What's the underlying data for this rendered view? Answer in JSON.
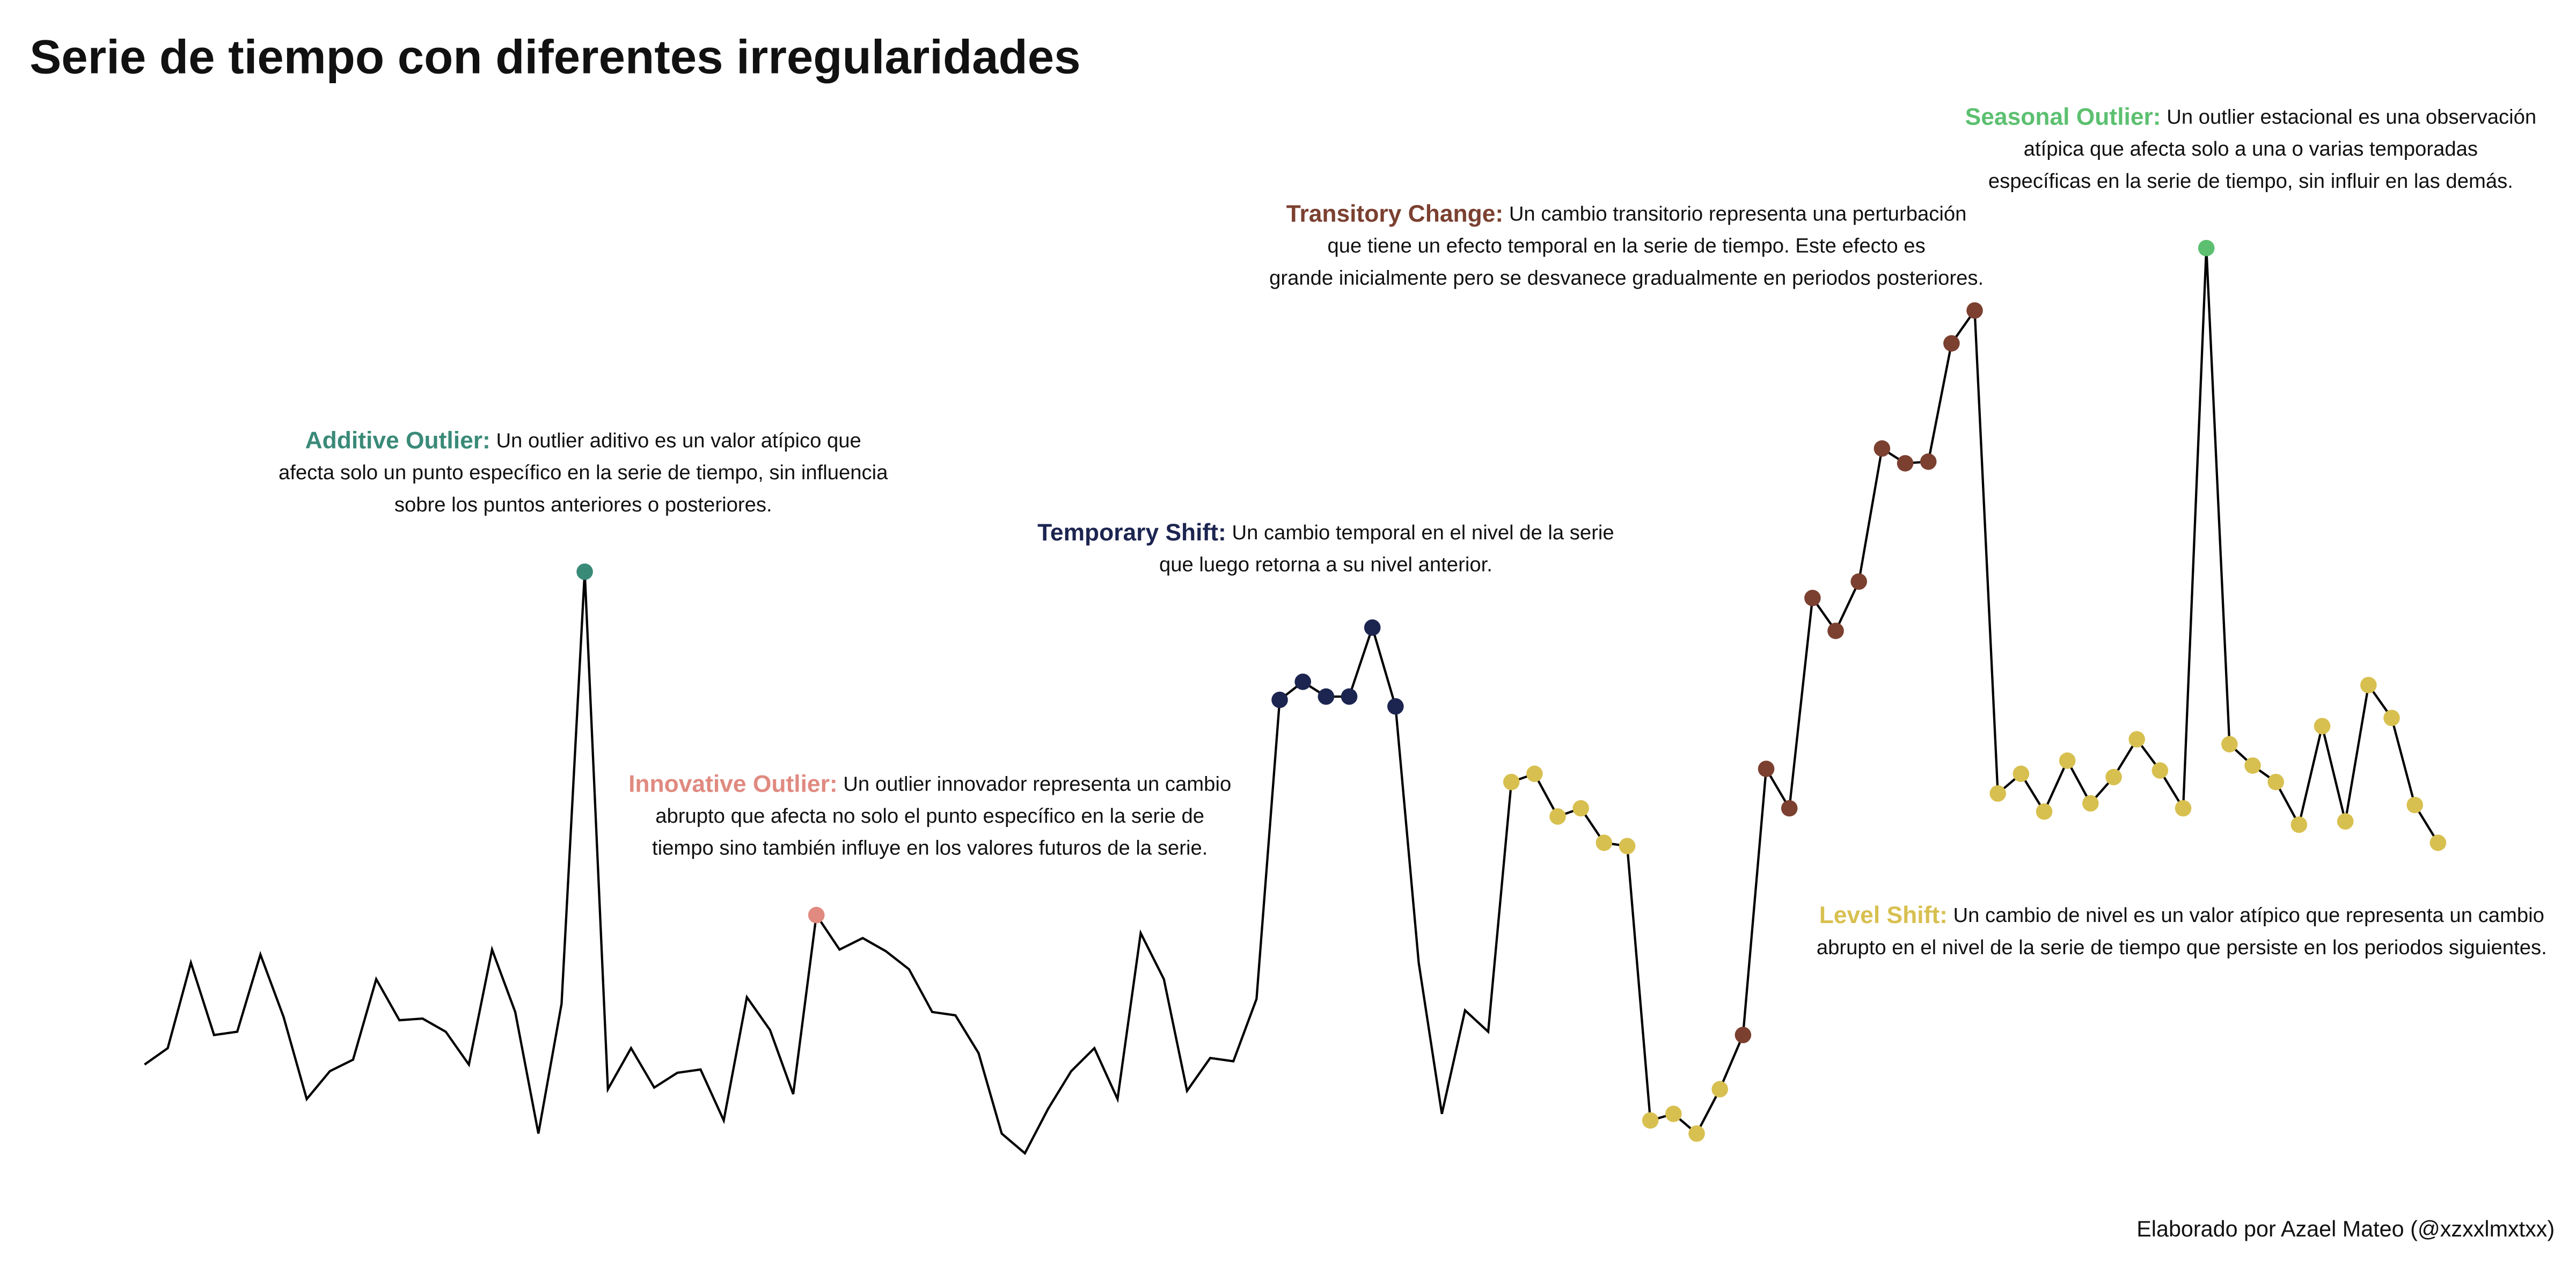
{
  "chart_data": {
    "type": "line",
    "title": "Serie de tiempo con diferentes irregularidades",
    "credit": "Elaborado por Azael Mateo (@xzxxlmxtxx)",
    "line_color": "#000000",
    "x": [
      1,
      2,
      3,
      4,
      5,
      6,
      7,
      8,
      9,
      10,
      11,
      12,
      13,
      14,
      15,
      16,
      17,
      18,
      19,
      20,
      21,
      22,
      23,
      24,
      25,
      26,
      27,
      28,
      29,
      30,
      31,
      32,
      33,
      34,
      35,
      36,
      37,
      38,
      39,
      40,
      41,
      42,
      43,
      44,
      45,
      46,
      47,
      48,
      49,
      50,
      51,
      52,
      53,
      54,
      55,
      56,
      57,
      58,
      59,
      60,
      61,
      62,
      63,
      64,
      65,
      66,
      67,
      68,
      69,
      70,
      71,
      72,
      73,
      74,
      75,
      76,
      77,
      78,
      79,
      80,
      81,
      82,
      83,
      84,
      85,
      86,
      87,
      88,
      89,
      90,
      91,
      92,
      93,
      94,
      95,
      96,
      97,
      98,
      99,
      100
    ],
    "values": [
      7.2,
      8.2,
      13.4,
      9.0,
      9.2,
      13.9,
      10.1,
      5.1,
      6.8,
      7.5,
      12.4,
      9.9,
      10.0,
      9.2,
      7.2,
      14.2,
      10.4,
      3.0,
      10.9,
      37.2,
      5.7,
      8.2,
      5.8,
      6.7,
      6.9,
      3.8,
      11.3,
      9.3,
      5.4,
      16.3,
      14.2,
      14.9,
      14.1,
      13.0,
      10.4,
      10.2,
      7.9,
      3.0,
      1.8,
      4.5,
      6.8,
      8.2,
      5.1,
      15.2,
      12.4,
      5.6,
      7.6,
      7.4,
      11.2,
      29.4,
      30.5,
      29.6,
      29.6,
      33.8,
      29.0,
      13.4,
      4.2,
      10.5,
      9.2,
      24.4,
      24.9,
      22.3,
      22.8,
      20.7,
      20.5,
      3.8,
      4.2,
      3.0,
      5.7,
      9.0,
      25.2,
      22.8,
      35.6,
      33.6,
      36.6,
      44.7,
      43.8,
      43.9,
      51.1,
      53.1,
      23.7,
      24.9,
      22.6,
      25.7,
      23.1,
      24.7,
      27.0,
      25.1,
      22.8,
      56.9,
      26.7,
      25.4,
      24.4,
      21.8,
      27.8,
      22.0,
      30.3,
      28.3,
      23.0,
      20.7
    ],
    "annotations": [
      {
        "title": "Additive Outlier:",
        "color": "#3a8a78",
        "points": [
          20
        ],
        "lines": [
          "Un outlier aditivo es un valor atípico que",
          "afecta solo un punto específico en la serie de tiempo, sin influencia",
          "sobre los puntos anteriores o posteriores."
        ]
      },
      {
        "title": "Innovative Outlier:",
        "color": "#e08a80",
        "points": [
          30
        ],
        "lines": [
          "Un outlier innovador representa un cambio",
          "abrupto que afecta no solo el punto específico en la serie de",
          "tiempo sino también influye en los valores futuros de la serie."
        ]
      },
      {
        "title": "Temporary Shift:",
        "color": "#1c2550",
        "points": [
          50,
          51,
          52,
          53,
          54,
          55
        ],
        "lines": [
          "Un cambio temporal en el nivel de la serie",
          "que luego retorna a su nivel anterior."
        ]
      },
      {
        "title": "Transitory Change:",
        "color": "#7b4030",
        "points": [
          70,
          71,
          72,
          73,
          74,
          75,
          76,
          77,
          78,
          79,
          80
        ],
        "lines": [
          "Un cambio transitorio representa una perturbación",
          "que tiene un efecto temporal en la serie de tiempo. Este efecto es",
          "grande inicialmente pero se desvanece gradualmente en periodos posteriores."
        ]
      },
      {
        "title": "Seasonal Outlier:",
        "color": "#5cc070",
        "points": [
          90
        ],
        "lines": [
          "Un outlier estacional es una observación",
          "atípica que afecta solo a una o varias temporadas",
          "específicas en la serie de tiempo, sin influir en las demás."
        ]
      },
      {
        "title": "Level Shift:",
        "color": "#d8c050",
        "points": [
          60,
          61,
          62,
          63,
          64,
          65,
          66,
          67,
          68,
          69,
          81,
          82,
          83,
          84,
          85,
          86,
          87,
          88,
          89,
          91,
          92,
          93,
          94,
          95,
          96,
          97,
          98,
          99,
          100
        ],
        "lines": [
          "Un cambio de nivel es un valor atípico que representa un cambio",
          "abrupto en el nivel de la serie de tiempo que persiste en los periodos siguientes."
        ]
      }
    ]
  }
}
